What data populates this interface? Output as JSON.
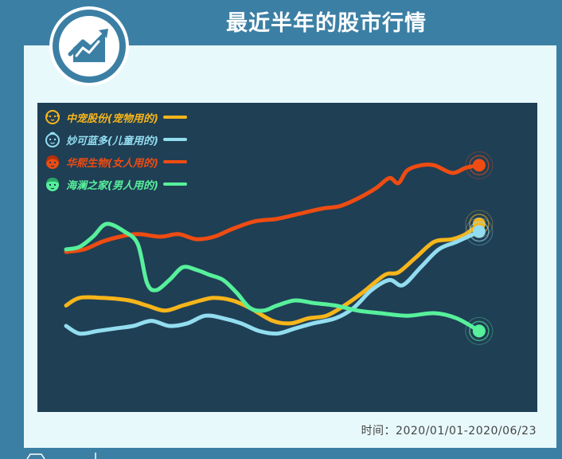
{
  "header": {
    "title": "最近半年的股市行情"
  },
  "footer": {
    "time_label": "时间：2020/01/01-2020/06/23"
  },
  "icons": {
    "badge": "rising-chart-icon"
  },
  "chart_data": {
    "type": "line",
    "title": "最近半年的股市行情",
    "xlabel": "",
    "ylabel": "",
    "x_range": [
      "2020/01/01",
      "2020/06/23"
    ],
    "grid": false,
    "legend_position": "top-left",
    "series": [
      {
        "name": "中宠股份(宠物用的)",
        "color": "#f6b51a",
        "icon": "dog-face-icon",
        "values": [
          [
            0,
            0.33
          ],
          [
            0.03,
            0.36
          ],
          [
            0.08,
            0.36
          ],
          [
            0.14,
            0.35
          ],
          [
            0.18,
            0.33
          ],
          [
            0.22,
            0.31
          ],
          [
            0.26,
            0.33
          ],
          [
            0.3,
            0.35
          ],
          [
            0.33,
            0.36
          ],
          [
            0.37,
            0.35
          ],
          [
            0.41,
            0.32
          ],
          [
            0.46,
            0.27
          ],
          [
            0.5,
            0.26
          ],
          [
            0.54,
            0.28
          ],
          [
            0.58,
            0.29
          ],
          [
            0.62,
            0.33
          ],
          [
            0.66,
            0.38
          ],
          [
            0.71,
            0.45
          ],
          [
            0.74,
            0.46
          ],
          [
            0.78,
            0.52
          ],
          [
            0.82,
            0.58
          ],
          [
            0.86,
            0.59
          ],
          [
            0.89,
            0.61
          ],
          [
            0.92,
            0.65
          ]
        ]
      },
      {
        "name": "妙可蓝多(儿童用的)",
        "color": "#93ddf0",
        "icon": "child-face-icon",
        "values": [
          [
            0,
            0.25
          ],
          [
            0.03,
            0.22
          ],
          [
            0.07,
            0.23
          ],
          [
            0.11,
            0.24
          ],
          [
            0.15,
            0.25
          ],
          [
            0.19,
            0.27
          ],
          [
            0.23,
            0.25
          ],
          [
            0.27,
            0.26
          ],
          [
            0.31,
            0.29
          ],
          [
            0.35,
            0.28
          ],
          [
            0.39,
            0.26
          ],
          [
            0.43,
            0.23
          ],
          [
            0.47,
            0.22
          ],
          [
            0.51,
            0.24
          ],
          [
            0.55,
            0.26
          ],
          [
            0.6,
            0.28
          ],
          [
            0.64,
            0.32
          ],
          [
            0.68,
            0.39
          ],
          [
            0.72,
            0.43
          ],
          [
            0.75,
            0.41
          ],
          [
            0.79,
            0.48
          ],
          [
            0.83,
            0.55
          ],
          [
            0.87,
            0.58
          ],
          [
            0.92,
            0.62
          ]
        ]
      },
      {
        "name": "华熙生物(女人用的)",
        "color": "#ee4c12",
        "icon": "woman-face-icon",
        "values": [
          [
            0,
            0.54
          ],
          [
            0.04,
            0.55
          ],
          [
            0.08,
            0.58
          ],
          [
            0.12,
            0.6
          ],
          [
            0.16,
            0.61
          ],
          [
            0.21,
            0.6
          ],
          [
            0.25,
            0.61
          ],
          [
            0.29,
            0.59
          ],
          [
            0.33,
            0.6
          ],
          [
            0.37,
            0.63
          ],
          [
            0.42,
            0.66
          ],
          [
            0.47,
            0.67
          ],
          [
            0.52,
            0.69
          ],
          [
            0.57,
            0.71
          ],
          [
            0.61,
            0.72
          ],
          [
            0.65,
            0.75
          ],
          [
            0.69,
            0.79
          ],
          [
            0.72,
            0.83
          ],
          [
            0.74,
            0.81
          ],
          [
            0.76,
            0.86
          ],
          [
            0.79,
            0.88
          ],
          [
            0.82,
            0.88
          ],
          [
            0.86,
            0.85
          ],
          [
            0.89,
            0.87
          ],
          [
            0.92,
            0.88
          ]
        ]
      },
      {
        "name": "海澜之家(男人用的)",
        "color": "#57f09b",
        "icon": "man-face-icon",
        "values": [
          [
            0,
            0.55
          ],
          [
            0.03,
            0.56
          ],
          [
            0.06,
            0.6
          ],
          [
            0.09,
            0.65
          ],
          [
            0.13,
            0.62
          ],
          [
            0.16,
            0.57
          ],
          [
            0.18,
            0.42
          ],
          [
            0.2,
            0.39
          ],
          [
            0.23,
            0.43
          ],
          [
            0.26,
            0.48
          ],
          [
            0.29,
            0.47
          ],
          [
            0.32,
            0.45
          ],
          [
            0.35,
            0.43
          ],
          [
            0.38,
            0.38
          ],
          [
            0.41,
            0.32
          ],
          [
            0.44,
            0.31
          ],
          [
            0.47,
            0.33
          ],
          [
            0.51,
            0.35
          ],
          [
            0.55,
            0.34
          ],
          [
            0.6,
            0.33
          ],
          [
            0.65,
            0.31
          ],
          [
            0.7,
            0.3
          ],
          [
            0.76,
            0.29
          ],
          [
            0.82,
            0.3
          ],
          [
            0.87,
            0.28
          ],
          [
            0.92,
            0.23
          ]
        ]
      }
    ]
  }
}
